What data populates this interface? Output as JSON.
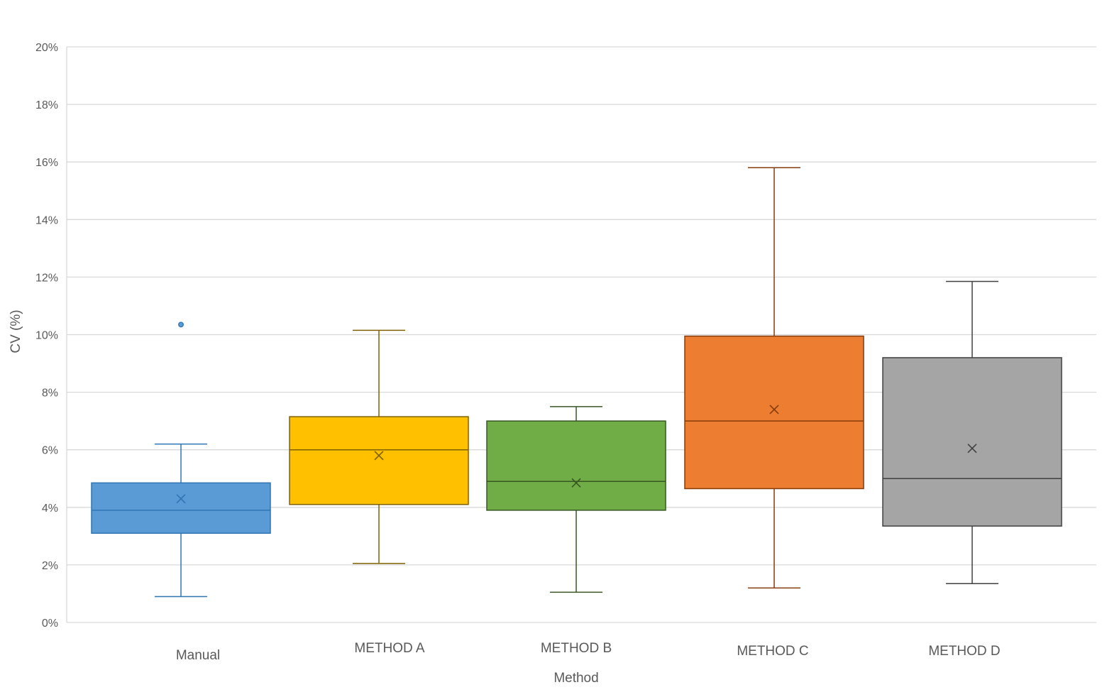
{
  "chart_data": {
    "type": "box",
    "xlabel": "Method",
    "ylabel": "CV (%)",
    "ylim": [
      0,
      20
    ],
    "y_tick_format": "percent",
    "yticks": [
      0,
      2,
      4,
      6,
      8,
      10,
      12,
      14,
      16,
      18,
      20
    ],
    "ytick_labels": [
      "0%",
      "2%",
      "4%",
      "6%",
      "8%",
      "10%",
      "12%",
      "14%",
      "16%",
      "18%",
      "20%"
    ],
    "grid": true,
    "legend": "none",
    "categories": [
      "Manual",
      "METHOD A",
      "METHOD B",
      "METHOD C",
      "METHOD D"
    ],
    "series": [
      {
        "color": "#5b9bd5",
        "stroke": "#2e75b6",
        "min": 0.9,
        "q1": 3.1,
        "median": 3.9,
        "q3": 4.85,
        "max": 6.2,
        "mean": 4.3,
        "outliers": [
          10.35
        ]
      },
      {
        "color": "#ffc000",
        "stroke": "#7f6000",
        "min": 2.05,
        "q1": 4.1,
        "median": 6.0,
        "q3": 7.15,
        "max": 10.15,
        "mean": 5.8,
        "outliers": []
      },
      {
        "color": "#70ad47",
        "stroke": "#375623",
        "min": 1.05,
        "q1": 3.9,
        "median": 4.9,
        "q3": 7.0,
        "max": 7.5,
        "mean": 4.85,
        "outliers": []
      },
      {
        "color": "#ed7d31",
        "stroke": "#843c0c",
        "min": 1.2,
        "q1": 4.65,
        "median": 7.0,
        "q3": 9.95,
        "max": 15.8,
        "mean": 7.4,
        "outliers": []
      },
      {
        "color": "#a5a5a5",
        "stroke": "#404040",
        "min": 1.35,
        "q1": 3.35,
        "median": 5.0,
        "q3": 9.2,
        "max": 11.85,
        "mean": 6.05,
        "outliers": []
      }
    ]
  }
}
